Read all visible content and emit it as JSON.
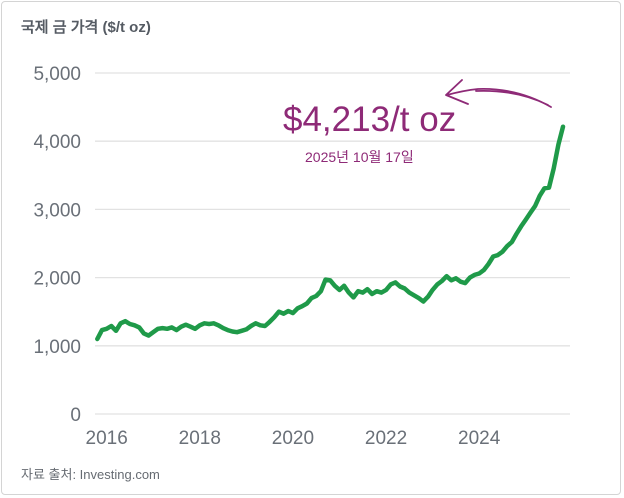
{
  "title": "국제 금 가격 ($/t oz)",
  "source": "자료 출처: Investing.com",
  "colors": {
    "line": "#1f9a49",
    "annotation": "#8e2a77",
    "grid": "#e2e2e2",
    "axis": "#6a7078"
  },
  "chart_data": {
    "type": "line",
    "ylim": [
      0,
      5000
    ],
    "yticks": [
      0,
      1000,
      2000,
      3000,
      4000,
      5000
    ],
    "ytick_labels": [
      "0",
      "1,000",
      "2,000",
      "3,000",
      "4,000",
      "5,000"
    ],
    "xticks": [
      2016,
      2018,
      2020,
      2022,
      2024
    ],
    "xtick_labels": [
      "2016",
      "2018",
      "2020",
      "2022",
      "2024"
    ],
    "xlim": [
      2015.75,
      2025.95
    ],
    "grid": true,
    "x": [
      2015.8,
      2015.9,
      2016.0,
      2016.1,
      2016.2,
      2016.3,
      2016.4,
      2016.5,
      2016.6,
      2016.7,
      2016.8,
      2016.9,
      2017.0,
      2017.1,
      2017.2,
      2017.3,
      2017.4,
      2017.5,
      2017.6,
      2017.7,
      2017.8,
      2017.9,
      2018.0,
      2018.1,
      2018.2,
      2018.3,
      2018.4,
      2018.5,
      2018.6,
      2018.7,
      2018.8,
      2018.9,
      2019.0,
      2019.1,
      2019.2,
      2019.3,
      2019.4,
      2019.5,
      2019.6,
      2019.7,
      2019.8,
      2019.9,
      2020.0,
      2020.1,
      2020.2,
      2020.3,
      2020.4,
      2020.5,
      2020.6,
      2020.7,
      2020.8,
      2020.9,
      2021.0,
      2021.1,
      2021.2,
      2021.3,
      2021.4,
      2021.5,
      2021.6,
      2021.7,
      2021.8,
      2021.9,
      2022.0,
      2022.1,
      2022.2,
      2022.3,
      2022.4,
      2022.5,
      2022.6,
      2022.7,
      2022.8,
      2022.9,
      2023.0,
      2023.1,
      2023.2,
      2023.3,
      2023.4,
      2023.5,
      2023.6,
      2023.7,
      2023.8,
      2023.9,
      2024.0,
      2024.1,
      2024.2,
      2024.3,
      2024.4,
      2024.5,
      2024.6,
      2024.7,
      2024.8,
      2024.9,
      2025.0,
      2025.1,
      2025.2,
      2025.3,
      2025.4,
      2025.5,
      2025.6,
      2025.7,
      2025.8
    ],
    "y": [
      1100,
      1230,
      1250,
      1290,
      1220,
      1330,
      1360,
      1320,
      1300,
      1270,
      1180,
      1150,
      1200,
      1250,
      1260,
      1250,
      1270,
      1230,
      1280,
      1310,
      1280,
      1250,
      1300,
      1330,
      1320,
      1330,
      1300,
      1260,
      1230,
      1210,
      1200,
      1220,
      1240,
      1290,
      1330,
      1300,
      1290,
      1350,
      1420,
      1500,
      1470,
      1510,
      1480,
      1550,
      1580,
      1620,
      1700,
      1730,
      1800,
      1970,
      1960,
      1880,
      1820,
      1880,
      1780,
      1710,
      1800,
      1780,
      1830,
      1760,
      1800,
      1780,
      1820,
      1900,
      1930,
      1870,
      1840,
      1780,
      1740,
      1700,
      1650,
      1720,
      1820,
      1900,
      1950,
      2020,
      1960,
      1990,
      1940,
      1920,
      2000,
      2040,
      2060,
      2110,
      2200,
      2310,
      2330,
      2380,
      2460,
      2520,
      2640,
      2750,
      2850,
      2950,
      3050,
      3200,
      3310,
      3320,
      3600,
      3950,
      4213
    ],
    "annotation": {
      "value_label": "$4,213/t oz",
      "date_label": "2025년 10월 17일"
    }
  }
}
